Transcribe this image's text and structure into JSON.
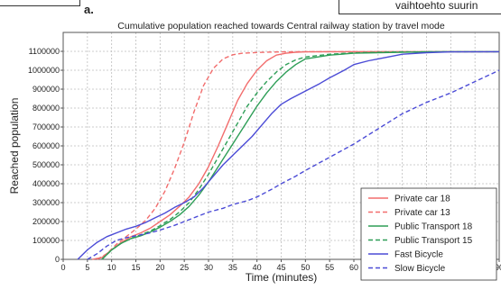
{
  "panel_label": "a.",
  "top_right_text": "vaihtoehto suurin",
  "chart_data": {
    "type": "line",
    "title": "Cumulative population reached towards Central railway station by travel mode",
    "xlabel": "Time (minutes)",
    "ylabel": "Reached population",
    "xlim": [
      0,
      90
    ],
    "ylim": [
      0,
      1200000
    ],
    "xticks": [
      0,
      5,
      10,
      15,
      20,
      25,
      30,
      35,
      40,
      45,
      50,
      55,
      60,
      65,
      70,
      75,
      80,
      85,
      90
    ],
    "yticks": [
      0,
      100000,
      200000,
      300000,
      400000,
      500000,
      600000,
      700000,
      800000,
      900000,
      1000000,
      1100000
    ],
    "grid": true,
    "legend_position": "bottom-right",
    "series": [
      {
        "name": "Private car 18",
        "color": "#f26d6d",
        "dash": "solid",
        "x": [
          6,
          8,
          10,
          12,
          14,
          16,
          18,
          20,
          22,
          24,
          26,
          28,
          30,
          32,
          34,
          36,
          38,
          40,
          42,
          44,
          46,
          48,
          50,
          55,
          60,
          70,
          80,
          90
        ],
        "y": [
          0,
          10000,
          50000,
          90000,
          120000,
          140000,
          165000,
          200000,
          235000,
          280000,
          330000,
          400000,
          490000,
          600000,
          720000,
          840000,
          930000,
          1000000,
          1050000,
          1080000,
          1090000,
          1095000,
          1097000,
          1098000,
          1098000,
          1098000,
          1098000,
          1098000
        ]
      },
      {
        "name": "Private car 13",
        "color": "#f26d6d",
        "dash": "dashed",
        "x": [
          7,
          9,
          11,
          13,
          15,
          17,
          19,
          21,
          23,
          25,
          27,
          29,
          31,
          33,
          35,
          37,
          40,
          43,
          45,
          50,
          55,
          60,
          70,
          80,
          90
        ],
        "y": [
          0,
          30000,
          80000,
          120000,
          160000,
          205000,
          270000,
          360000,
          480000,
          620000,
          780000,
          920000,
          1010000,
          1060000,
          1082000,
          1090000,
          1094000,
          1096000,
          1097000,
          1098000,
          1098000,
          1098000,
          1098000,
          1098000,
          1098000
        ]
      },
      {
        "name": "Public Transport 18",
        "color": "#2e9e57",
        "dash": "solid",
        "x": [
          8,
          10,
          12,
          14,
          16,
          18,
          20,
          22,
          24,
          26,
          28,
          30,
          32,
          34,
          36,
          38,
          40,
          42,
          44,
          46,
          48,
          50,
          55,
          60,
          65,
          70,
          75,
          80,
          90
        ],
        "y": [
          0,
          50000,
          85000,
          110000,
          125000,
          145000,
          170000,
          200000,
          235000,
          280000,
          340000,
          410000,
          490000,
          570000,
          650000,
          730000,
          810000,
          880000,
          940000,
          990000,
          1030000,
          1060000,
          1080000,
          1090000,
          1093000,
          1095000,
          1097000,
          1098000,
          1098000
        ]
      },
      {
        "name": "Public Transport 15",
        "color": "#2e9e57",
        "dash": "dashed",
        "x": [
          8,
          10,
          12,
          14,
          16,
          18,
          20,
          22,
          24,
          26,
          28,
          30,
          32,
          34,
          36,
          38,
          40,
          42,
          44,
          46,
          48,
          50,
          55,
          60,
          65,
          70,
          80,
          90
        ],
        "y": [
          0,
          50000,
          85000,
          110000,
          130000,
          150000,
          178000,
          210000,
          250000,
          300000,
          370000,
          450000,
          540000,
          630000,
          720000,
          810000,
          880000,
          940000,
          990000,
          1030000,
          1055000,
          1070000,
          1085000,
          1092000,
          1095000,
          1097000,
          1098000,
          1098000
        ]
      },
      {
        "name": "Fast Bicycle",
        "color": "#4b4bd6",
        "dash": "solid",
        "x": [
          3,
          5,
          7,
          9,
          11,
          13,
          15,
          17,
          19,
          21,
          23,
          25,
          27,
          29,
          31,
          33,
          35,
          37,
          39,
          41,
          43,
          45,
          47,
          50,
          53,
          55,
          58,
          60,
          63,
          65,
          68,
          70,
          75,
          80,
          90
        ],
        "y": [
          0,
          50000,
          90000,
          120000,
          140000,
          160000,
          175000,
          195000,
          220000,
          245000,
          275000,
          300000,
          330000,
          380000,
          440000,
          500000,
          550000,
          600000,
          650000,
          710000,
          770000,
          820000,
          850000,
          890000,
          930000,
          960000,
          1000000,
          1030000,
          1050000,
          1060000,
          1075000,
          1085000,
          1093000,
          1097000,
          1098000
        ]
      },
      {
        "name": "Slow Bicycle",
        "color": "#4b4bd6",
        "dash": "dashed",
        "x": [
          5,
          7,
          9,
          11,
          13,
          15,
          18,
          20,
          23,
          25,
          28,
          30,
          33,
          35,
          38,
          40,
          43,
          45,
          48,
          50,
          55,
          60,
          65,
          70,
          75,
          80,
          85,
          90
        ],
        "y": [
          0,
          30000,
          70000,
          100000,
          115000,
          125000,
          140000,
          155000,
          180000,
          200000,
          230000,
          250000,
          270000,
          290000,
          310000,
          330000,
          370000,
          400000,
          440000,
          470000,
          540000,
          610000,
          690000,
          770000,
          830000,
          880000,
          940000,
          1000000
        ]
      }
    ]
  }
}
